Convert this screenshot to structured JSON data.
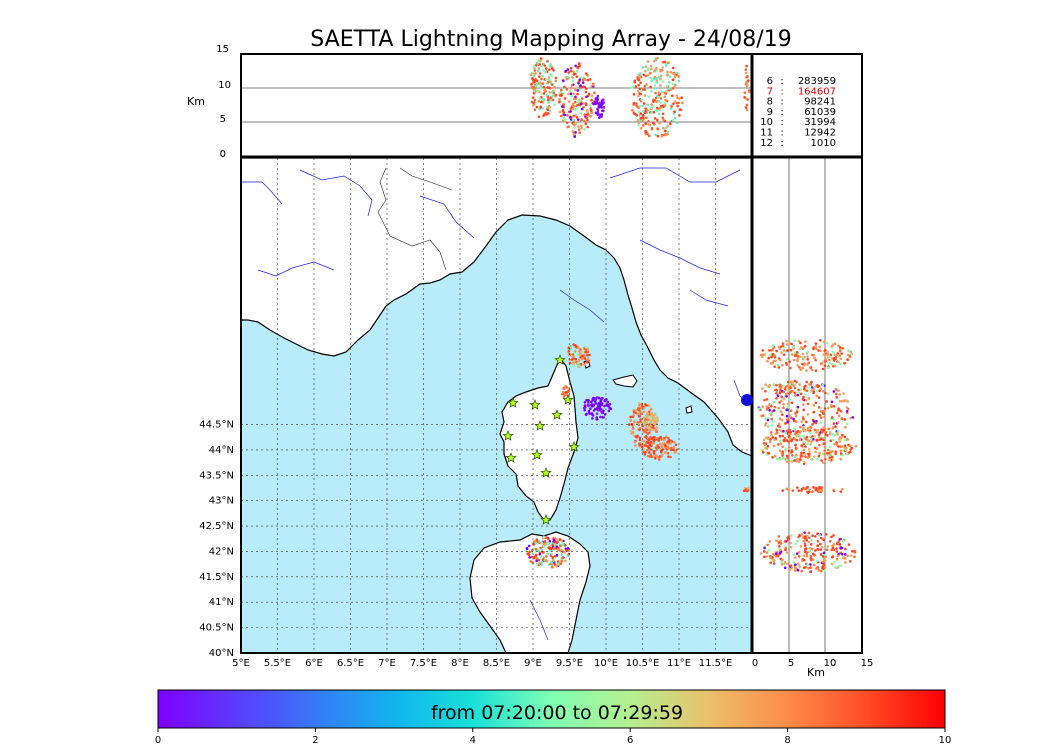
{
  "title": "SAETTA Lightning Mapping Array - 24/08/19",
  "alt_axis_unit": "Km",
  "alt_ticks": [
    "15",
    "10",
    "5",
    "0"
  ],
  "lon_ticks": [
    "5°E",
    "5.5°E",
    "6°E",
    "6.5°E",
    "7°E",
    "7.5°E",
    "8°E",
    "8.5°E",
    "9°E",
    "9.5°E",
    "10°E",
    "10.5°E",
    "11°E",
    "11.5°E"
  ],
  "lat_ticks": [
    "44.5°N",
    "44°N",
    "43.5°N",
    "43°N",
    "42.5°N",
    "42°N",
    "41.5°N",
    "41°N",
    "40.5°N",
    "40°N"
  ],
  "side_ticks": [
    "0",
    "5",
    "10",
    "15"
  ],
  "side_unit": "Km",
  "counts": [
    {
      "label": "6",
      "value": "283959",
      "color": "#000000"
    },
    {
      "label": "7",
      "value": "164607",
      "color": "#e00000"
    },
    {
      "label": "8",
      "value": "98241",
      "color": "#000000"
    },
    {
      "label": "9",
      "value": "61039",
      "color": "#000000"
    },
    {
      "label": "10",
      "value": "31994",
      "color": "#000000"
    },
    {
      "label": "11",
      "value": "12942",
      "color": "#000000"
    },
    {
      "label": "12",
      "value": "1010",
      "color": "#000000"
    }
  ],
  "colorbar": {
    "label": "from 07:20:00 to 07:29:59",
    "ticks": [
      "0",
      "2",
      "4",
      "6",
      "8",
      "10"
    ]
  },
  "colors": {
    "sea": "#b8ecfa",
    "land": "#ffffff",
    "river": "#0000cc",
    "source_early": "#7a00ff",
    "source_mid": "#7fffb0",
    "source_late": "#ff4020"
  }
}
